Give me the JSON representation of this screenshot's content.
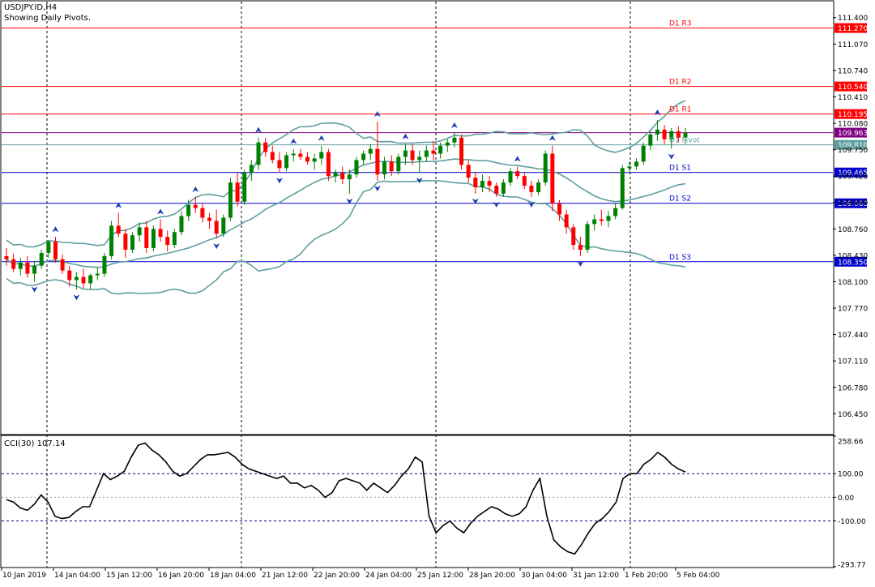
{
  "window": {
    "symbol_title": "USDJPY.ID,H4",
    "indicator_note": "Showing Daily Pivots."
  },
  "colors": {
    "background": "#ffffff",
    "bull_candle": "#008000",
    "bear_candle": "#ff0000",
    "bollinger": "#5f9ea0",
    "pivot_resistance": "#ff0000",
    "pivot_central": "#800080",
    "pivot_support": "#0000cd",
    "pivot_mid": "#5f9ea0",
    "fractal_arrow": "#1e3cb4",
    "cci_line": "#000000",
    "label_text": "#ffffff"
  },
  "chart_data": [
    {
      "type": "candlestick",
      "name": "price",
      "ylim": [
        106.2,
        111.6
      ],
      "y_ticks": [
        "111.400",
        "111.070",
        "110.740",
        "110.410",
        "110.080",
        "109.750",
        "109.420",
        "109.090",
        "108.760",
        "108.430",
        "108.100",
        "107.770",
        "107.440",
        "107.110",
        "106.780",
        "106.450"
      ],
      "x_ticks": [
        "10 Jan 2019",
        "14 Jan 04:00",
        "15 Jan 12:00",
        "16 Jan 20:00",
        "18 Jan 04:00",
        "21 Jan 12:00",
        "22 Jan 20:00",
        "24 Jan 04:00",
        "25 Jan 12:00",
        "28 Jan 20:00",
        "30 Jan 04:00",
        "31 Jan 12:00",
        "1 Feb 20:00",
        "5 Feb 04:00"
      ],
      "pivots": [
        {
          "name": "D1 R3",
          "value": 111.27,
          "value_label": "111.270",
          "kind": "resistance"
        },
        {
          "name": "D1 R2",
          "value": 110.54,
          "value_label": "110.540",
          "kind": "resistance"
        },
        {
          "name": "D1 R1",
          "value": 110.195,
          "value_label": "110.195",
          "kind": "resistance"
        },
        {
          "name": "",
          "value": 109.963,
          "value_label": "109.963",
          "kind": "central"
        },
        {
          "name": "D1 Pivot",
          "value": 109.81,
          "value_label": "109.810",
          "kind": "mid"
        },
        {
          "name": "D1 S1",
          "value": 109.465,
          "value_label": "109.465",
          "kind": "support"
        },
        {
          "name": "D1 S2",
          "value": 109.08,
          "value_label": "109.080",
          "kind": "support"
        },
        {
          "name": "D1 S3",
          "value": 108.35,
          "value_label": "108.350",
          "kind": "support"
        }
      ],
      "ohlc": [
        [
          108.42,
          108.52,
          108.3,
          108.38
        ],
        [
          108.38,
          108.45,
          108.22,
          108.26
        ],
        [
          108.26,
          108.4,
          108.18,
          108.34
        ],
        [
          108.34,
          108.42,
          108.15,
          108.2
        ],
        [
          108.2,
          108.36,
          108.1,
          108.3
        ],
        [
          108.3,
          108.5,
          108.26,
          108.46
        ],
        [
          108.46,
          108.62,
          108.4,
          108.6
        ],
        [
          108.6,
          108.66,
          108.34,
          108.38
        ],
        [
          108.38,
          108.44,
          108.2,
          108.24
        ],
        [
          108.24,
          108.3,
          108.04,
          108.12
        ],
        [
          108.12,
          108.22,
          108.0,
          108.16
        ],
        [
          108.16,
          108.26,
          108.02,
          108.08
        ],
        [
          108.08,
          108.2,
          108.0,
          108.18
        ],
        [
          108.18,
          108.28,
          108.12,
          108.2
        ],
        [
          108.2,
          108.46,
          108.16,
          108.42
        ],
        [
          108.42,
          108.86,
          108.38,
          108.8
        ],
        [
          108.8,
          108.96,
          108.66,
          108.7
        ],
        [
          108.7,
          108.76,
          108.4,
          108.5
        ],
        [
          108.5,
          108.72,
          108.46,
          108.68
        ],
        [
          108.68,
          108.84,
          108.6,
          108.78
        ],
        [
          108.78,
          108.86,
          108.46,
          108.52
        ],
        [
          108.52,
          108.8,
          108.48,
          108.76
        ],
        [
          108.76,
          108.88,
          108.6,
          108.66
        ],
        [
          108.66,
          108.74,
          108.48,
          108.56
        ],
        [
          108.56,
          108.76,
          108.52,
          108.72
        ],
        [
          108.72,
          108.98,
          108.68,
          108.92
        ],
        [
          108.92,
          109.12,
          108.86,
          109.06
        ],
        [
          109.06,
          109.16,
          108.96,
          109.02
        ],
        [
          109.02,
          109.08,
          108.84,
          108.9
        ],
        [
          108.9,
          108.96,
          108.76,
          108.86
        ],
        [
          108.86,
          109.0,
          108.64,
          108.7
        ],
        [
          108.7,
          108.94,
          108.66,
          108.9
        ],
        [
          108.9,
          109.4,
          108.86,
          109.34
        ],
        [
          109.34,
          109.46,
          109.04,
          109.1
        ],
        [
          109.1,
          109.5,
          109.06,
          109.46
        ],
        [
          109.46,
          109.62,
          109.36,
          109.56
        ],
        [
          109.56,
          109.9,
          109.5,
          109.84
        ],
        [
          109.84,
          109.9,
          109.66,
          109.72
        ],
        [
          109.72,
          109.8,
          109.58,
          109.62
        ],
        [
          109.62,
          109.72,
          109.46,
          109.52
        ],
        [
          109.52,
          109.72,
          109.48,
          109.68
        ],
        [
          109.68,
          109.76,
          109.6,
          109.7
        ],
        [
          109.7,
          109.76,
          109.62,
          109.66
        ],
        [
          109.66,
          109.72,
          109.56,
          109.6
        ],
        [
          109.6,
          109.7,
          109.5,
          109.64
        ],
        [
          109.64,
          109.8,
          109.56,
          109.72
        ],
        [
          109.72,
          109.76,
          109.36,
          109.42
        ],
        [
          109.42,
          109.5,
          109.34,
          109.46
        ],
        [
          109.46,
          109.54,
          109.32,
          109.38
        ],
        [
          109.38,
          109.5,
          109.2,
          109.44
        ],
        [
          109.44,
          109.66,
          109.4,
          109.62
        ],
        [
          109.62,
          109.74,
          109.56,
          109.7
        ],
        [
          109.7,
          109.82,
          109.62,
          109.76
        ],
        [
          109.76,
          110.1,
          109.36,
          109.44
        ],
        [
          109.44,
          109.66,
          109.38,
          109.6
        ],
        [
          109.6,
          109.68,
          109.42,
          109.48
        ],
        [
          109.48,
          109.7,
          109.44,
          109.66
        ],
        [
          109.66,
          109.82,
          109.56,
          109.74
        ],
        [
          109.74,
          109.82,
          109.56,
          109.62
        ],
        [
          109.62,
          109.74,
          109.46,
          109.66
        ],
        [
          109.66,
          109.8,
          109.6,
          109.74
        ],
        [
          109.74,
          109.86,
          109.62,
          109.7
        ],
        [
          109.7,
          109.84,
          109.64,
          109.8
        ],
        [
          109.8,
          109.88,
          109.72,
          109.84
        ],
        [
          109.84,
          109.96,
          109.78,
          109.9
        ],
        [
          109.9,
          109.94,
          109.5,
          109.56
        ],
        [
          109.56,
          109.62,
          109.34,
          109.4
        ],
        [
          109.4,
          109.46,
          109.2,
          109.28
        ],
        [
          109.28,
          109.44,
          109.22,
          109.36
        ],
        [
          109.36,
          109.42,
          109.22,
          109.3
        ],
        [
          109.3,
          109.34,
          109.16,
          109.2
        ],
        [
          109.2,
          109.38,
          109.16,
          109.34
        ],
        [
          109.34,
          109.52,
          109.3,
          109.48
        ],
        [
          109.48,
          109.54,
          109.38,
          109.42
        ],
        [
          109.42,
          109.46,
          109.26,
          109.3
        ],
        [
          109.3,
          109.36,
          109.16,
          109.22
        ],
        [
          109.22,
          109.38,
          109.18,
          109.34
        ],
        [
          109.34,
          109.74,
          109.3,
          109.7
        ],
        [
          109.7,
          109.8,
          108.98,
          109.08
        ],
        [
          109.08,
          109.12,
          108.86,
          108.94
        ],
        [
          108.94,
          109.0,
          108.7,
          108.78
        ],
        [
          108.78,
          108.82,
          108.5,
          108.56
        ],
        [
          108.56,
          108.66,
          108.42,
          108.5
        ],
        [
          108.5,
          108.86,
          108.46,
          108.82
        ],
        [
          108.82,
          108.94,
          108.74,
          108.88
        ],
        [
          108.88,
          109.0,
          108.8,
          108.86
        ],
        [
          108.86,
          108.98,
          108.78,
          108.92
        ],
        [
          108.92,
          109.08,
          108.88,
          109.02
        ],
        [
          109.02,
          109.56,
          109.0,
          109.52
        ],
        [
          109.52,
          109.6,
          109.46,
          109.54
        ],
        [
          109.54,
          109.64,
          109.5,
          109.6
        ],
        [
          109.6,
          109.84,
          109.56,
          109.8
        ],
        [
          109.8,
          109.98,
          109.74,
          109.94
        ],
        [
          109.94,
          110.12,
          109.86,
          110.0
        ],
        [
          110.0,
          110.06,
          109.82,
          109.88
        ],
        [
          109.88,
          110.02,
          109.76,
          109.98
        ],
        [
          109.98,
          110.04,
          109.84,
          109.9
        ],
        [
          109.9,
          110.02,
          109.82,
          109.96
        ]
      ]
    },
    {
      "type": "line",
      "name": "CCI",
      "label": "CCI(30) 107.14",
      "ylim": [
        -293.77,
        258.66
      ],
      "y_ticks": [
        "258.66",
        "100.00",
        "0.00",
        "-100.00",
        "-293.77"
      ],
      "levels": [
        100,
        0,
        -100
      ],
      "values": [
        -10,
        -20,
        -45,
        -55,
        -30,
        10,
        -20,
        -80,
        -90,
        -85,
        -60,
        -40,
        -40,
        30,
        100,
        75,
        90,
        110,
        170,
        220,
        230,
        200,
        180,
        150,
        110,
        90,
        100,
        130,
        160,
        180,
        180,
        185,
        190,
        170,
        140,
        120,
        110,
        100,
        90,
        80,
        90,
        60,
        60,
        40,
        50,
        30,
        0,
        20,
        70,
        80,
        70,
        60,
        30,
        60,
        40,
        20,
        50,
        90,
        120,
        170,
        150,
        -80,
        -150,
        -120,
        -100,
        -130,
        -150,
        -110,
        -80,
        -60,
        -40,
        -50,
        -70,
        -80,
        -70,
        -40,
        30,
        80,
        -80,
        -180,
        -210,
        -230,
        -240,
        -200,
        -150,
        -110,
        -90,
        -60,
        -20,
        80,
        100,
        100,
        140,
        160,
        190,
        170,
        140,
        120,
        107
      ]
    }
  ]
}
